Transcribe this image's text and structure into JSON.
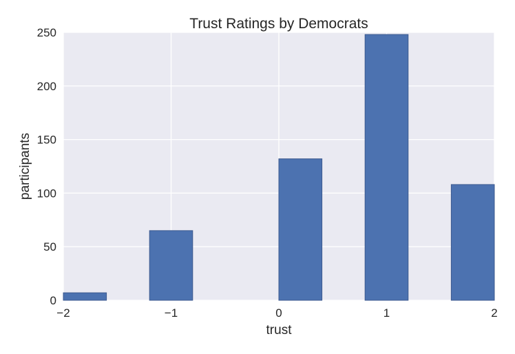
{
  "chart_data": {
    "type": "bar",
    "title": "Trust Ratings by Democrats",
    "xlabel": "trust",
    "ylabel": "participants",
    "xlim": [
      -2,
      2
    ],
    "ylim": [
      0,
      250
    ],
    "x_ticks": [
      -2,
      -1,
      0,
      1,
      2
    ],
    "x_tick_labels": [
      "−2",
      "−1",
      "0",
      "1",
      "2"
    ],
    "y_ticks": [
      0,
      50,
      100,
      150,
      200,
      250
    ],
    "y_tick_labels": [
      "0",
      "50",
      "100",
      "150",
      "200",
      "250"
    ],
    "grid": true,
    "bars": [
      {
        "x0": -2.0,
        "x1": -1.6,
        "value": 7
      },
      {
        "x0": -1.2,
        "x1": -0.8,
        "value": 65
      },
      {
        "x0": 0.0,
        "x1": 0.4,
        "value": 132
      },
      {
        "x0": 0.8,
        "x1": 1.2,
        "value": 248
      },
      {
        "x0": 1.6,
        "x1": 2.0,
        "value": 108
      }
    ],
    "bar_color": "#4c72b0",
    "background_color": "#eaeaf2"
  }
}
